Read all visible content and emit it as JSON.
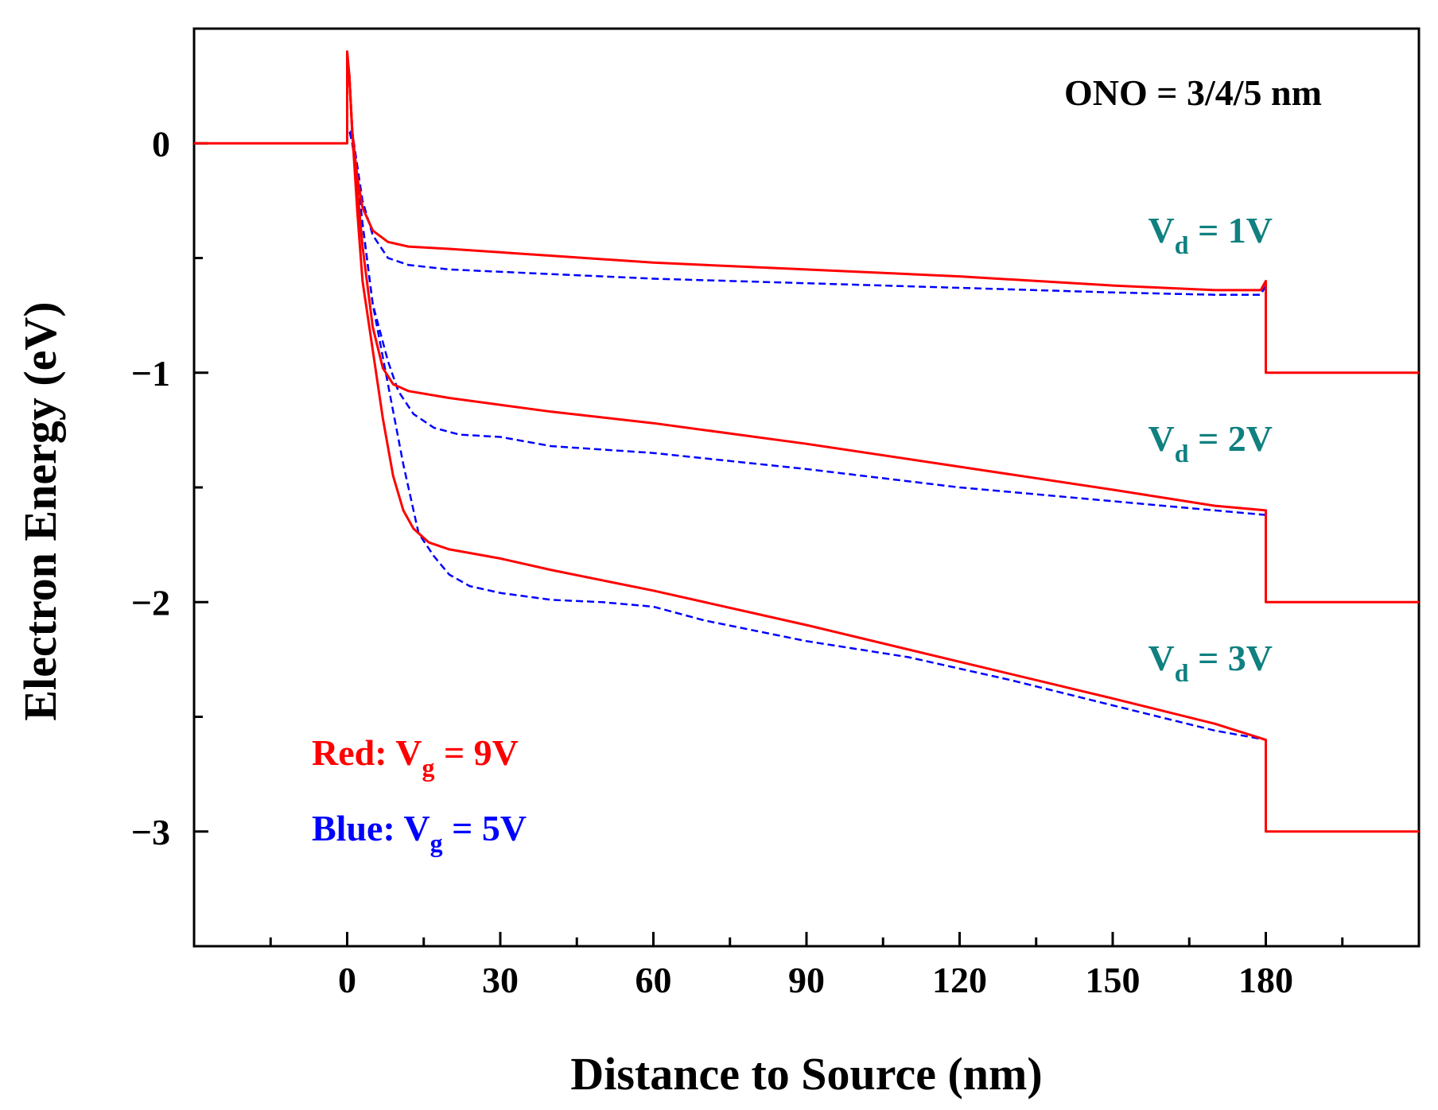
{
  "chart_data": {
    "type": "line",
    "title": "",
    "xlabel": "Distance to Source (nm)",
    "ylabel": "Electron Energy (eV)",
    "xlim": [
      -30,
      210
    ],
    "ylim": [
      -3.5,
      0.5
    ],
    "xticks": [
      0,
      30,
      60,
      90,
      120,
      150,
      180
    ],
    "xtick_labels": [
      "0",
      "30",
      "60",
      "90",
      "120",
      "150",
      "180"
    ],
    "yticks": [
      0,
      -1,
      -2,
      -3
    ],
    "ytick_labels": [
      "0",
      "−1",
      "−2",
      "−3"
    ],
    "grid": false,
    "colors": {
      "red": "#ff0000",
      "blue": "#0000ff",
      "teal": "#108080",
      "axis": "#000000"
    },
    "annotations": {
      "ono": "ONO = 3/4/5 nm",
      "red_legend": {
        "prefix": "Red: V",
        "sub": "g",
        "suffix": " = 9V"
      },
      "blue_legend": {
        "prefix": "Blue: V",
        "sub": "g",
        "suffix": " = 5V"
      },
      "vd_labels": [
        {
          "prefix": "V",
          "sub": "d",
          "suffix": " = 1V",
          "x": 180,
          "y": -0.38
        },
        {
          "prefix": "V",
          "sub": "d",
          "suffix": " = 2V",
          "x": 180,
          "y": -1.29
        },
        {
          "prefix": "V",
          "sub": "d",
          "suffix": " = 3V",
          "x": 180,
          "y": -2.24
        }
      ]
    },
    "series": [
      {
        "name": "Red Vg=9V, Vd=1V",
        "color": "red",
        "dash": false,
        "x": [
          -30,
          0,
          0,
          0.4,
          1,
          2,
          3,
          5,
          8,
          12,
          20,
          40,
          60,
          90,
          120,
          150,
          170,
          179,
          180,
          180,
          210
        ],
        "y": [
          0,
          0,
          0.4,
          0.3,
          0.05,
          -0.15,
          -0.28,
          -0.38,
          -0.43,
          -0.45,
          -0.46,
          -0.49,
          -0.52,
          -0.55,
          -0.58,
          -0.62,
          -0.64,
          -0.64,
          -0.6,
          -1.0,
          -1.0
        ]
      },
      {
        "name": "Blue Vg=5V, Vd=1V",
        "color": "blue",
        "dash": true,
        "x": [
          0.5,
          1,
          2,
          3,
          5,
          8,
          12,
          20,
          40,
          60,
          90,
          120,
          150,
          170,
          179,
          180
        ],
        "y": [
          0.05,
          0.05,
          -0.1,
          -0.25,
          -0.4,
          -0.5,
          -0.53,
          -0.55,
          -0.57,
          -0.59,
          -0.61,
          -0.63,
          -0.65,
          -0.66,
          -0.66,
          -0.62
        ]
      },
      {
        "name": "Red Vg=9V, Vd=2V",
        "color": "red",
        "dash": false,
        "x": [
          0.4,
          1,
          2,
          3,
          5,
          7,
          9,
          12,
          20,
          40,
          60,
          90,
          120,
          150,
          170,
          180,
          180,
          210
        ],
        "y": [
          0.3,
          0.05,
          -0.2,
          -0.45,
          -0.8,
          -0.98,
          -1.05,
          -1.08,
          -1.11,
          -1.17,
          -1.22,
          -1.31,
          -1.41,
          -1.51,
          -1.58,
          -1.6,
          -2.0,
          -2.0
        ]
      },
      {
        "name": "Blue Vg=5V, Vd=2V",
        "color": "blue",
        "dash": true,
        "x": [
          0.5,
          1,
          2,
          3,
          5,
          8,
          10,
          13,
          17,
          22,
          30,
          40,
          60,
          90,
          120,
          150,
          170,
          180
        ],
        "y": [
          0.05,
          0.0,
          -0.15,
          -0.35,
          -0.7,
          -0.95,
          -1.08,
          -1.18,
          -1.24,
          -1.27,
          -1.28,
          -1.32,
          -1.35,
          -1.42,
          -1.5,
          -1.56,
          -1.6,
          -1.62
        ]
      },
      {
        "name": "Red Vg=9V, Vd=3V",
        "color": "red",
        "dash": false,
        "x": [
          0.4,
          1,
          2,
          3,
          5,
          7,
          9,
          11,
          13,
          16,
          20,
          30,
          40,
          60,
          90,
          120,
          150,
          170,
          180,
          180,
          210
        ],
        "y": [
          0.3,
          0.05,
          -0.3,
          -0.6,
          -0.9,
          -1.2,
          -1.45,
          -1.6,
          -1.68,
          -1.74,
          -1.77,
          -1.81,
          -1.86,
          -1.95,
          -2.1,
          -2.26,
          -2.42,
          -2.53,
          -2.6,
          -3.0,
          -3.0
        ]
      },
      {
        "name": "Blue Vg=5V, Vd=3V",
        "color": "blue",
        "dash": true,
        "x": [
          0.5,
          1,
          2,
          3,
          5,
          8,
          11,
          14,
          17,
          20,
          24,
          30,
          40,
          50,
          60,
          70,
          90,
          110,
          130,
          150,
          170,
          180
        ],
        "y": [
          0.05,
          0.0,
          -0.15,
          -0.35,
          -0.7,
          -1.05,
          -1.4,
          -1.7,
          -1.8,
          -1.88,
          -1.93,
          -1.96,
          -1.99,
          -2.0,
          -2.02,
          -2.08,
          -2.17,
          -2.24,
          -2.34,
          -2.45,
          -2.56,
          -2.6
        ]
      }
    ]
  }
}
